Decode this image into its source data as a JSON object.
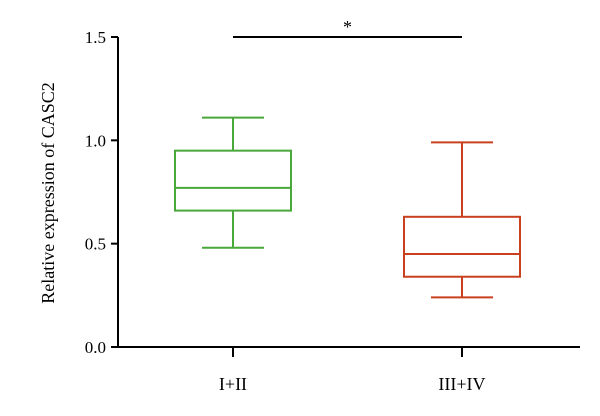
{
  "chart_data": {
    "type": "box",
    "ylabel": "Relative expression of CASC2",
    "xlabel": "",
    "ylim": [
      0.0,
      1.5
    ],
    "yticks": [
      0.0,
      0.5,
      1.0,
      1.5
    ],
    "ytick_labels": [
      "0.0",
      "0.5",
      "1.0",
      "1.5"
    ],
    "categories": [
      "I+II",
      "III+IV"
    ],
    "boxes": [
      {
        "category": "I+II",
        "min": 0.48,
        "q1": 0.66,
        "median": 0.77,
        "q3": 0.95,
        "max": 1.11,
        "color": "#4aa83a"
      },
      {
        "category": "III+IV",
        "min": 0.24,
        "q1": 0.34,
        "median": 0.45,
        "q3": 0.63,
        "max": 0.99,
        "color": "#c8401e"
      }
    ],
    "significance": {
      "label": "*",
      "between": [
        "I+II",
        "III+IV"
      ],
      "y": 1.5
    },
    "grid": false,
    "legend": "none"
  }
}
